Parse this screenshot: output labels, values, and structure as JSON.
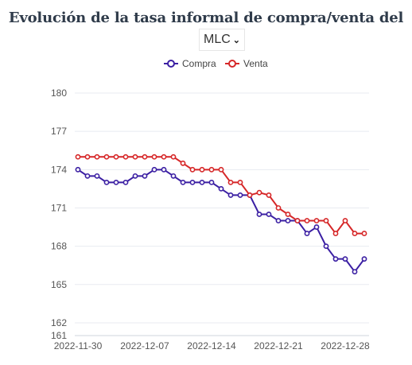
{
  "selector": {
    "value": "MLC",
    "icon": "chevron-down-icon"
  },
  "chart_data": {
    "type": "line",
    "title": "Evolución de la tasa informal de compra/venta del",
    "x": [
      "2022-11-30",
      "2022-12-01",
      "2022-12-02",
      "2022-12-03",
      "2022-12-04",
      "2022-12-05",
      "2022-12-06",
      "2022-12-07",
      "2022-12-08",
      "2022-12-09",
      "2022-12-10",
      "2022-12-11",
      "2022-12-12",
      "2022-12-13",
      "2022-12-14",
      "2022-12-15",
      "2022-12-16",
      "2022-12-17",
      "2022-12-18",
      "2022-12-19",
      "2022-12-20",
      "2022-12-21",
      "2022-12-22",
      "2022-12-23",
      "2022-12-24",
      "2022-12-25",
      "2022-12-26",
      "2022-12-27",
      "2022-12-28",
      "2022-12-29",
      "2022-12-30"
    ],
    "x_ticks": [
      "2022-11-30",
      "2022-12-07",
      "2022-12-14",
      "2022-12-21",
      "2022-12-28"
    ],
    "y_ticks": [
      161,
      162,
      165,
      168,
      171,
      174,
      177,
      180
    ],
    "ylim": [
      161,
      180
    ],
    "grid": true,
    "legend": "top",
    "series": [
      {
        "name": "Compra",
        "color": "#3b1fa3",
        "values": [
          174,
          173.5,
          173.5,
          173,
          173,
          173,
          173.5,
          173.5,
          174,
          174,
          173.5,
          173,
          173,
          173,
          173,
          172.5,
          172,
          172,
          172,
          170.5,
          170.5,
          170,
          170,
          170,
          169,
          169.5,
          168,
          167,
          167,
          166,
          167
        ]
      },
      {
        "name": "Venta",
        "color": "#d62728",
        "values": [
          175,
          175,
          175,
          175,
          175,
          175,
          175,
          175,
          175,
          175,
          175,
          174.5,
          174,
          174,
          174,
          174,
          173,
          173,
          172,
          172.2,
          172,
          171,
          170.5,
          170,
          170,
          170,
          170,
          169,
          170,
          169,
          169
        ]
      }
    ]
  }
}
